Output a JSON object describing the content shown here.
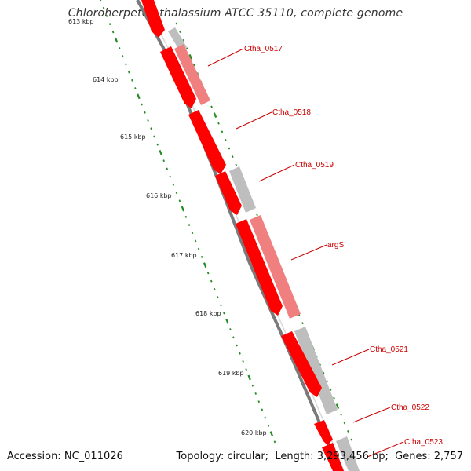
{
  "title": "Chloroherpeton thalassium ATCC 35110, complete genome",
  "footer": {
    "accession_label": "Accession:",
    "accession": "NC_011026",
    "topology_label": "Topology:",
    "topology": "circular",
    "length_label": "Length:",
    "length": "3,293,456 bp",
    "genes_label": "Genes:",
    "genes": "2,757"
  },
  "ticks": [
    {
      "label": "613 kbp"
    },
    {
      "label": "614 kbp"
    },
    {
      "label": "615 kbp"
    },
    {
      "label": "616 kbp"
    },
    {
      "label": "617 kbp"
    },
    {
      "label": "618 kbp"
    },
    {
      "label": "619 kbp"
    },
    {
      "label": "620 kbp"
    }
  ],
  "genes": [
    {
      "name": "Ctha_0517"
    },
    {
      "name": "Ctha_0518"
    },
    {
      "name": "Ctha_0519"
    },
    {
      "name": "argS"
    },
    {
      "name": "Ctha_0521"
    },
    {
      "name": "Ctha_0522"
    },
    {
      "name": "Ctha_0523"
    }
  ],
  "colors": {
    "backbone": "#808080",
    "gene_cds": "#ff0000",
    "feature_light": "#f08080",
    "feature_gray": "#bebebe",
    "tick_green": "#228b22",
    "label_red": "#cc0000"
  }
}
